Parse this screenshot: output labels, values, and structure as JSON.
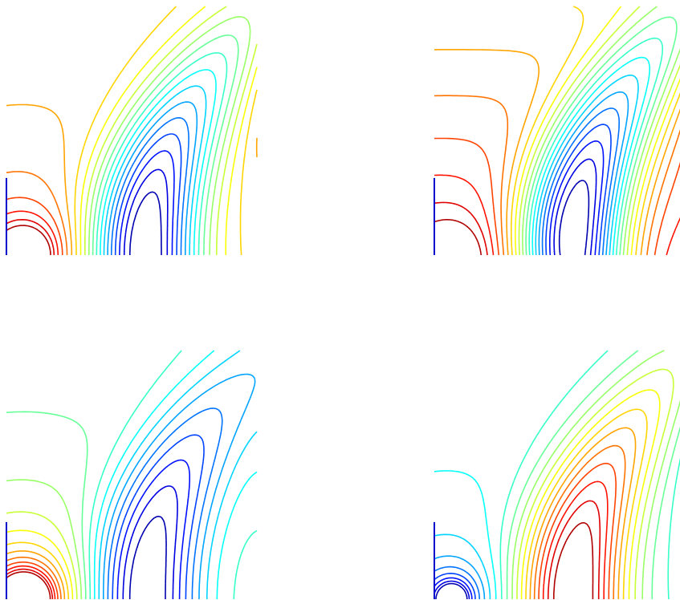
{
  "chart_data": [
    {
      "type": "contour"
    },
    {
      "type": "contour"
    },
    {
      "type": "contour"
    },
    {
      "type": "contour"
    }
  ]
}
